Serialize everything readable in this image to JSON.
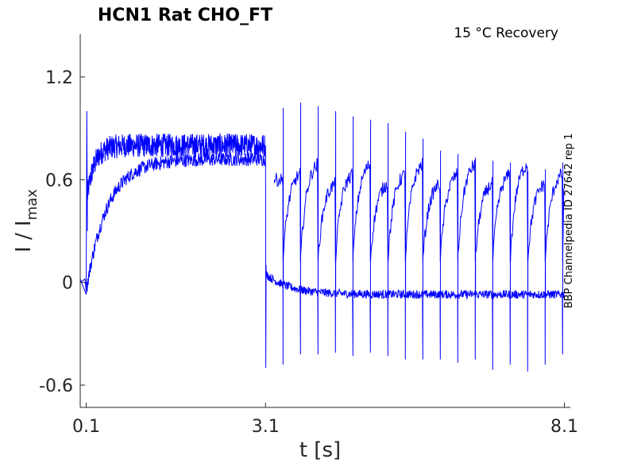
{
  "chart_data": {
    "type": "line",
    "title": "HCN1  Rat  CHO_FT",
    "annotation": "15 °C  Recovery",
    "side_label": "BBP Channelpedia ID 27642 rep 1",
    "xlabel": "t [s]",
    "ylabel_main": "I / I",
    "ylabel_sub": "max",
    "xlim": [
      0.0,
      8.2
    ],
    "ylim": [
      -0.73,
      1.45
    ],
    "xticks": [
      0.1,
      3.1,
      8.1
    ],
    "xtick_labels": [
      "0.1",
      "3.1",
      "8.1"
    ],
    "yticks": [
      1.2,
      0.6,
      0,
      -0.6
    ],
    "ytick_labels": [
      "1.2",
      "0.6",
      "0",
      "-0.6"
    ],
    "grid": false,
    "color": "#0000ff",
    "activation": {
      "t_start": 0.1,
      "t_end": 3.1,
      "plateau_upper": 0.8,
      "plateau_lower": 0.7,
      "slow_trace_plateau": 0.72,
      "transient_peak": 1.0
    },
    "recovery": {
      "t_start": 3.1,
      "t_end": 8.1,
      "baseline": -0.07,
      "upper_trace_level": 0.6,
      "n_pulses": 17,
      "pulse_negative_peaks": [
        -0.48,
        -0.42,
        -0.42,
        -0.41,
        -0.43,
        -0.41,
        -0.43,
        -0.45,
        -0.45,
        -0.45,
        -0.47,
        -0.45,
        -0.51,
        -0.48,
        -0.52,
        -0.48,
        -0.42
      ],
      "pulse_positive_peaks": [
        1.02,
        1.05,
        1.03,
        1.0,
        0.97,
        0.95,
        0.93,
        0.88,
        0.84,
        0.77,
        0.75,
        0.73,
        0.71,
        0.7,
        0.65,
        0.66,
        0.7
      ],
      "recovered_level_end": 0.7
    }
  }
}
